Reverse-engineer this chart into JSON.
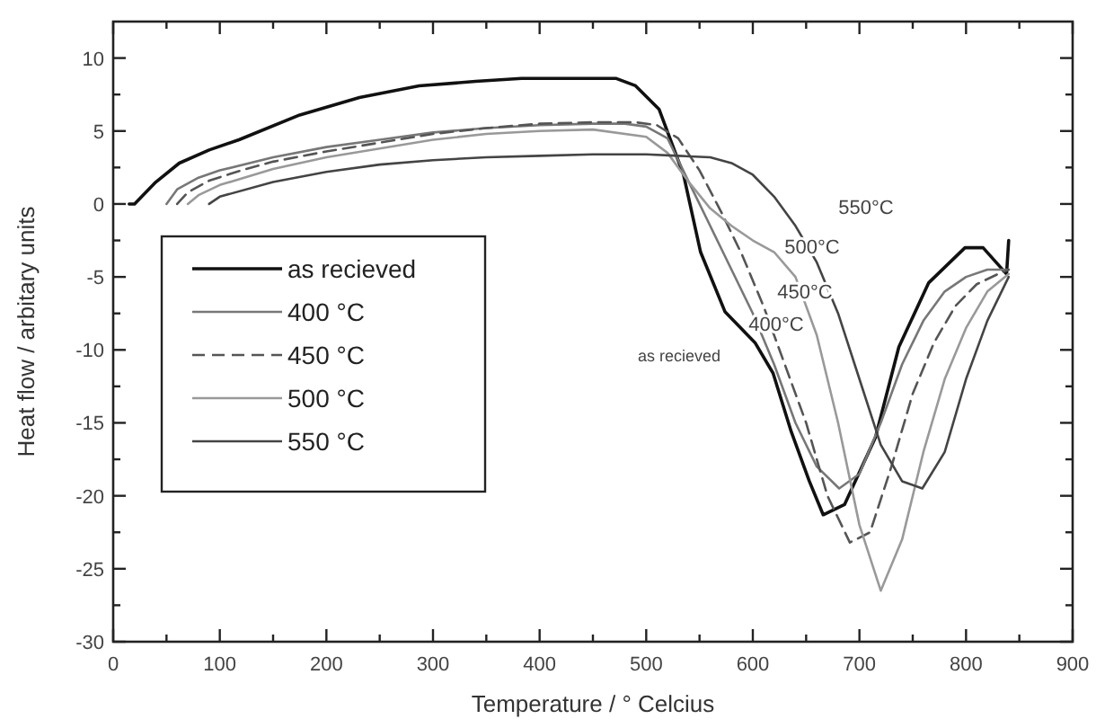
{
  "chart_data": {
    "type": "line",
    "xlabel": "Temperature / ° Celcius",
    "ylabel": "Heat flow / arbitary units",
    "xlim": [
      0,
      900
    ],
    "ylim": [
      -30,
      12.5
    ],
    "xticks": [
      0,
      {
        "value": 50,
        "label": null
      },
      100,
      {
        "value": 150,
        "label": null
      },
      200,
      {
        "value": 250,
        "label": null
      },
      300,
      {
        "value": 350,
        "label": null
      },
      400,
      {
        "value": 450,
        "label": null
      },
      500,
      {
        "value": 550,
        "label": null
      },
      600,
      {
        "value": 650,
        "label": null
      },
      700,
      {
        "value": 750,
        "label": null
      },
      800,
      {
        "value": 850,
        "label": null
      },
      900
    ],
    "yticks": [
      -30,
      {
        "value": -27.5,
        "label": null
      },
      -25,
      {
        "value": -22.5,
        "label": null
      },
      -20,
      {
        "value": -17.5,
        "label": null
      },
      -15,
      {
        "value": -12.5,
        "label": null
      },
      -10,
      {
        "value": -7.5,
        "label": null
      },
      -5,
      {
        "value": -2.5,
        "label": null
      },
      0,
      {
        "value": 2.5,
        "label": null
      },
      5,
      {
        "value": 7.5,
        "label": null
      },
      10
    ],
    "grid": false,
    "legend": "left",
    "series": [
      {
        "name": "as recieved",
        "color": "#111111",
        "x": [
          15,
          20,
          40,
          62,
          90,
          118,
          175,
          231,
          287,
          340,
          383,
          420,
          472,
          490,
          512,
          535,
          551,
          574,
          602,
          619,
          636,
          653,
          666,
          686,
          715,
          737,
          765,
          799,
          816,
          838,
          840
        ],
        "values": [
          0,
          0,
          1.5,
          2.8,
          3.7,
          4.4,
          6.1,
          7.3,
          8.1,
          8.4,
          8.6,
          8.6,
          8.6,
          8.1,
          6.5,
          2,
          -3.3,
          -7.4,
          -9.5,
          -11.6,
          -15.6,
          -19,
          -21.3,
          -20.6,
          -16,
          -9.8,
          -5.4,
          -3,
          -3,
          -4.8,
          -2.5
        ]
      },
      {
        "name": "400 °C",
        "color": "#777777",
        "x": [
          50,
          60,
          80,
          100,
          150,
          200,
          250,
          300,
          350,
          400,
          450,
          480,
          500,
          520,
          540,
          560,
          580,
          600,
          620,
          640,
          660,
          681,
          700,
          720,
          740,
          760,
          780,
          800,
          820,
          840
        ],
        "values": [
          0,
          1,
          1.8,
          2.3,
          3.2,
          3.9,
          4.4,
          4.9,
          5.2,
          5.4,
          5.5,
          5.5,
          5.3,
          4.5,
          1.5,
          -1.5,
          -4.5,
          -7.5,
          -11,
          -15,
          -18,
          -19.5,
          -18.5,
          -15,
          -11,
          -8,
          -6,
          -5,
          -4.5,
          -4.5
        ]
      },
      {
        "name": "450 °C",
        "color": "#555555",
        "line_style": "dashed",
        "x": [
          60,
          70,
          90,
          120,
          150,
          200,
          250,
          300,
          350,
          400,
          450,
          490,
          510,
          530,
          550,
          570,
          590,
          610,
          630,
          650,
          670,
          691,
          710,
          730,
          750,
          770,
          790,
          810,
          830,
          840
        ],
        "values": [
          0,
          0.8,
          1.6,
          2.3,
          2.9,
          3.6,
          4.2,
          4.8,
          5.2,
          5.5,
          5.6,
          5.6,
          5.4,
          4.5,
          2.3,
          -0.5,
          -3.5,
          -7,
          -11,
          -15,
          -20,
          -23.2,
          -22.5,
          -18,
          -13,
          -9.5,
          -7,
          -5.5,
          -4.8,
          -4.5
        ]
      },
      {
        "name": "500 °C",
        "color": "#999999",
        "x": [
          70,
          80,
          100,
          150,
          200,
          250,
          300,
          350,
          400,
          450,
          500,
          520,
          540,
          560,
          580,
          600,
          620,
          640,
          660,
          680,
          700,
          720,
          740,
          760,
          780,
          800,
          820,
          840
        ],
        "values": [
          0,
          0.6,
          1.3,
          2.4,
          3.2,
          3.8,
          4.4,
          4.8,
          5,
          5.1,
          4.6,
          3.5,
          1.5,
          -0.3,
          -1.5,
          -2.5,
          -3.3,
          -5,
          -9,
          -15,
          -22,
          -26.5,
          -23,
          -17,
          -12,
          -8.5,
          -6,
          -4.8
        ]
      },
      {
        "name": "550 °C",
        "color": "#444444",
        "x": [
          90,
          100,
          150,
          200,
          250,
          300,
          350,
          400,
          450,
          500,
          530,
          560,
          580,
          600,
          620,
          640,
          660,
          680,
          700,
          720,
          740,
          759,
          780,
          800,
          820,
          840
        ],
        "values": [
          0,
          0.5,
          1.5,
          2.2,
          2.7,
          3,
          3.2,
          3.3,
          3.4,
          3.4,
          3.3,
          3.2,
          2.8,
          2,
          0.5,
          -1.5,
          -4,
          -7.5,
          -12,
          -16.5,
          -19,
          -19.5,
          -17,
          -12,
          -8,
          -5
        ]
      }
    ],
    "annotations": [
      "550°C",
      "500°C",
      "450°C",
      "400°C",
      "as recieved"
    ]
  }
}
